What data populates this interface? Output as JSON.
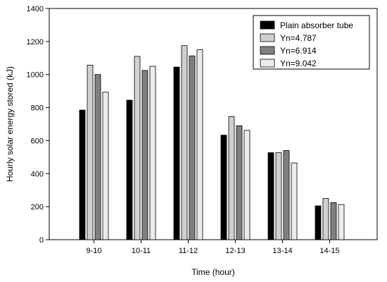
{
  "chart_data": {
    "type": "bar",
    "xlabel": "Time (hour)",
    "ylabel": "Hourly solar energy stored (kJ)",
    "ylim": [
      0,
      1400
    ],
    "yticks": [
      0,
      200,
      400,
      600,
      800,
      1000,
      1200,
      1400
    ],
    "categories": [
      "9-10",
      "10-11",
      "11-12",
      "12-13",
      "13-14",
      "14-15"
    ],
    "legend_position": "top-right",
    "grid": false,
    "series": [
      {
        "name": "Plain absorber tube",
        "color": "#000000",
        "values": [
          785,
          845,
          1045,
          633,
          527,
          205
        ]
      },
      {
        "name": "Yn=4.787",
        "color": "#d0d0d0",
        "values": [
          1057,
          1110,
          1175,
          745,
          527,
          250
        ]
      },
      {
        "name": "Yn=6.914",
        "color": "#808080",
        "values": [
          1000,
          1025,
          1113,
          690,
          540,
          225
        ]
      },
      {
        "name": "Yn=9.042",
        "color": "#ececec",
        "values": [
          893,
          1050,
          1150,
          662,
          465,
          213
        ]
      }
    ]
  }
}
